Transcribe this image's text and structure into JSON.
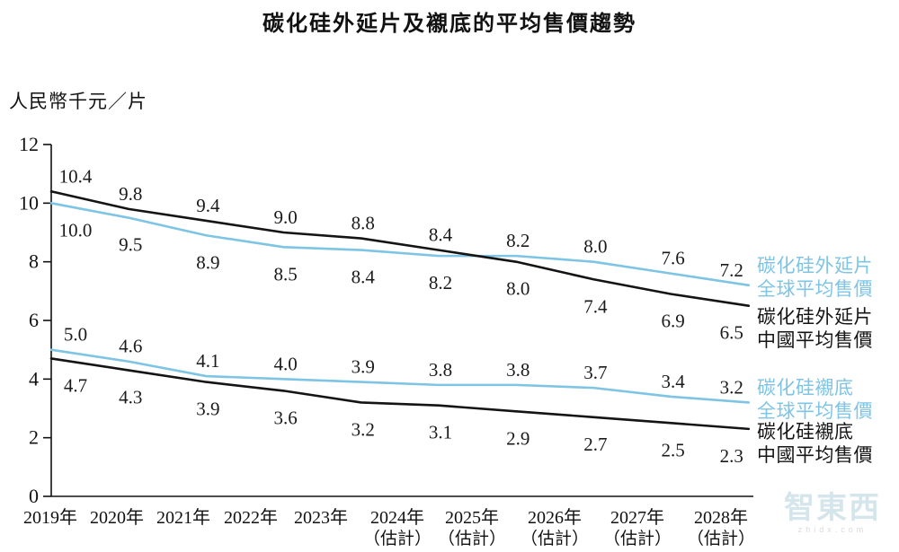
{
  "title": "碳化硅外延片及襯底的平均售價趨勢",
  "unit_label": "人民幣千元／片",
  "watermark": {
    "text": "智東西",
    "sub": "zhidx.com"
  },
  "legend": [
    {
      "line1": "碳化硅外延片",
      "line2": "全球平均售價",
      "color": "#7EC4E4"
    },
    {
      "line1": "碳化硅外延片",
      "line2": "中國平均售價",
      "color": "#141414"
    },
    {
      "line1": "碳化硅襯底",
      "line2": "全球平均售價",
      "color": "#7EC4E4"
    },
    {
      "line1": "碳化硅襯底",
      "line2": "中國平均售價",
      "color": "#141414"
    }
  ],
  "chart_data": {
    "type": "line",
    "title": "碳化硅外延片及襯底的平均售價趨勢",
    "ylabel": "人民幣千元／片",
    "categories": [
      "2019年",
      "2020年",
      "2021年",
      "2022年",
      "2023年",
      "2024年",
      "2025年",
      "2026年",
      "2027年",
      "2028年"
    ],
    "category_notes": [
      "",
      "",
      "",
      "",
      "",
      "（估計）",
      "（估計）",
      "（估計）",
      "（估計）",
      "（估計）"
    ],
    "ylim": [
      0,
      12
    ],
    "yticks": [
      0,
      2,
      4,
      6,
      8,
      10,
      12
    ],
    "grid": false,
    "legend_position": "right",
    "series": [
      {
        "id": "epitaxial-global",
        "name": "碳化硅外延片全球平均售價",
        "color": "#7EC4E4",
        "values": [
          10.0,
          9.5,
          8.9,
          8.5,
          8.4,
          8.2,
          8.2,
          8.0,
          7.6,
          7.2
        ]
      },
      {
        "id": "epitaxial-china",
        "name": "碳化硅外延片中國平均售價",
        "color": "#141414",
        "values": [
          10.4,
          9.8,
          9.4,
          9.0,
          8.8,
          8.4,
          8.0,
          7.4,
          6.9,
          6.5
        ]
      },
      {
        "id": "substrate-global",
        "name": "碳化硅襯底全球平均售價",
        "color": "#7EC4E4",
        "values": [
          5.0,
          4.6,
          4.1,
          4.0,
          3.9,
          3.8,
          3.8,
          3.7,
          3.4,
          3.2
        ]
      },
      {
        "id": "substrate-china",
        "name": "碳化硅襯底中國平均售價",
        "color": "#141414",
        "values": [
          4.7,
          4.3,
          3.9,
          3.6,
          3.2,
          3.1,
          2.9,
          2.7,
          2.5,
          2.3
        ]
      }
    ],
    "label_pairs": [
      [
        0,
        1
      ],
      [
        2,
        3
      ]
    ]
  }
}
